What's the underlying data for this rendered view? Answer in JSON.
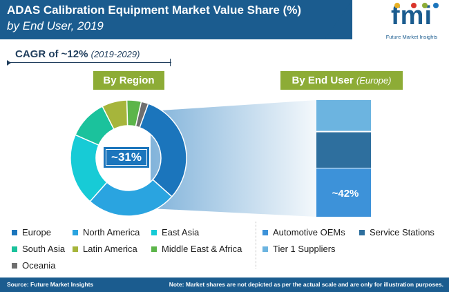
{
  "header": {
    "title_line1": "ADAS Calibration Equipment Market Value Share (%)",
    "title_line2": "by End User, 2019"
  },
  "logo": {
    "text": "fmi",
    "subtitle": "Future Market Insights",
    "dot_colors": [
      "#e8b023",
      "#d9342b",
      "#8dac36",
      "#1b75bc"
    ]
  },
  "cagr": {
    "label": "CAGR of ~12%",
    "period": "(2019-2029)"
  },
  "sections": {
    "region_label": "By Region",
    "end_user_label": "By End User",
    "end_user_sub": "(Europe)"
  },
  "footer": {
    "source": "Source: Future Market Insights",
    "note": "Note: Market shares are not depicted as per the actual scale and are only for illustration purposes."
  },
  "chart_data": [
    {
      "type": "pie",
      "subtype": "donut",
      "labels": [
        "Europe",
        "North America",
        "East Asia",
        "South Asia",
        "Latin America",
        "Middle East & Africa",
        "Oceania"
      ],
      "values": [
        31,
        25,
        20,
        11,
        7,
        4,
        2
      ],
      "colors": [
        "#1b75bc",
        "#2aa4e0",
        "#17cbd6",
        "#1bc29c",
        "#a6b53b",
        "#5cb54a",
        "#6f6f6f"
      ],
      "highlight": {
        "label": "Europe",
        "text": "~31%"
      },
      "legend_position": "bottom-left"
    },
    {
      "type": "bar",
      "subtype": "stacked-100",
      "categories": [
        "Automotive OEMs",
        "Service Stations",
        "Tier 1 Suppliers"
      ],
      "values": [
        42,
        31,
        27
      ],
      "colors": [
        "#3d92d9",
        "#2e6f9e",
        "#6cb4e0"
      ],
      "data_labels": [
        "~42%",
        "",
        ""
      ],
      "legend_position": "bottom-right"
    }
  ]
}
